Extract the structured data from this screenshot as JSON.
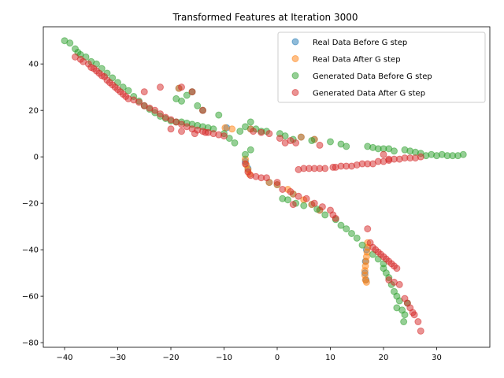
{
  "chart_data": {
    "type": "scatter",
    "title": "Transformed Features at Iteration 3000",
    "xlabel": "",
    "ylabel": "",
    "xlim": [
      -44,
      40
    ],
    "ylim": [
      -82,
      56
    ],
    "xticks": [
      -40,
      -30,
      -20,
      -10,
      0,
      10,
      20,
      30
    ],
    "yticks": [
      -80,
      -60,
      -40,
      -20,
      0,
      20,
      40
    ],
    "grid": false,
    "legend_position": "top-right",
    "series": [
      {
        "name": "Real Data Before G step",
        "color": "#1f77b4",
        "points": [
          [
            -18.5,
            29.5
          ],
          [
            -9.5,
            12.5
          ],
          [
            -5.0,
            12.0
          ],
          [
            4.5,
            8.5
          ],
          [
            7.0,
            7.5
          ],
          [
            -6.0,
            -2.0
          ],
          [
            -5.5,
            -5.0
          ],
          [
            -1.5,
            -11.0
          ],
          [
            0.0,
            -12.0
          ],
          [
            3.0,
            -16.0
          ],
          [
            6.5,
            -20.5
          ],
          [
            8.0,
            -23.0
          ],
          [
            16.8,
            -40.0
          ],
          [
            16.6,
            -45.0
          ],
          [
            16.5,
            -50.0
          ],
          [
            16.7,
            -53.0
          ]
        ]
      },
      {
        "name": "Real Data After G step",
        "color": "#ff7f0e",
        "points": [
          [
            -18.5,
            29.5
          ],
          [
            -9.8,
            12.5
          ],
          [
            -8.5,
            12.0
          ],
          [
            -5.0,
            12.0
          ],
          [
            4.5,
            8.5
          ],
          [
            7.0,
            7.5
          ],
          [
            -6.0,
            -1.0
          ],
          [
            -5.8,
            -3.5
          ],
          [
            -5.5,
            -5.5
          ],
          [
            -5.2,
            -7.5
          ],
          [
            -1.5,
            -11.0
          ],
          [
            0.0,
            -12.0
          ],
          [
            2.0,
            -14.0
          ],
          [
            3.0,
            -16.0
          ],
          [
            5.0,
            -18.5
          ],
          [
            6.5,
            -20.5
          ],
          [
            8.0,
            -23.0
          ],
          [
            17.0,
            -37.0
          ],
          [
            17.0,
            -39.0
          ],
          [
            16.9,
            -41.0
          ],
          [
            16.8,
            -43.0
          ],
          [
            16.7,
            -45.0
          ],
          [
            16.6,
            -47.0
          ],
          [
            16.5,
            -49.0
          ],
          [
            16.5,
            -51.0
          ],
          [
            16.6,
            -53.0
          ],
          [
            16.8,
            -54.0
          ]
        ]
      },
      {
        "name": "Generated Data Before G step",
        "color": "#2ca02c",
        "points": [
          [
            -40.0,
            50.0
          ],
          [
            -39.0,
            49.0
          ],
          [
            -38.0,
            46.5
          ],
          [
            -37.5,
            45.0
          ],
          [
            -37.0,
            44.0
          ],
          [
            -36.0,
            43.0
          ],
          [
            -35.0,
            41.0
          ],
          [
            -34.0,
            40.0
          ],
          [
            -33.0,
            38.0
          ],
          [
            -32.0,
            36.0
          ],
          [
            -31.0,
            34.0
          ],
          [
            -30.0,
            32.0
          ],
          [
            -29.0,
            30.0
          ],
          [
            -28.0,
            28.5
          ],
          [
            -27.0,
            26.0
          ],
          [
            -26.0,
            24.0
          ],
          [
            -25.0,
            22.0
          ],
          [
            -24.0,
            20.5
          ],
          [
            -23.0,
            19.0
          ],
          [
            -22.0,
            17.5
          ],
          [
            -21.0,
            16.5
          ],
          [
            -20.0,
            15.5
          ],
          [
            -19.0,
            15.0
          ],
          [
            -18.0,
            15.0
          ],
          [
            -17.0,
            14.5
          ],
          [
            -16.0,
            14.0
          ],
          [
            -15.0,
            13.5
          ],
          [
            -14.0,
            13.0
          ],
          [
            -13.0,
            12.5
          ],
          [
            -12.0,
            12.0
          ],
          [
            -19.0,
            25.0
          ],
          [
            -18.0,
            24.0
          ],
          [
            -17.0,
            26.5
          ],
          [
            -16.0,
            28.0
          ],
          [
            -15.0,
            22.0
          ],
          [
            -14.0,
            20.0
          ],
          [
            -11.0,
            18.0
          ],
          [
            -10.0,
            10.0
          ],
          [
            -9.0,
            8.0
          ],
          [
            -8.0,
            6.0
          ],
          [
            -7.0,
            11.0
          ],
          [
            -6.0,
            13.0
          ],
          [
            -5.0,
            15.0
          ],
          [
            -4.0,
            12.0
          ],
          [
            -3.0,
            11.0
          ],
          [
            -2.0,
            11.0
          ],
          [
            -5.0,
            3.0
          ],
          [
            -6.0,
            1.0
          ],
          [
            0.5,
            10.0
          ],
          [
            1.5,
            9.0
          ],
          [
            3.0,
            7.5
          ],
          [
            6.5,
            7.0
          ],
          [
            10.0,
            6.5
          ],
          [
            12.0,
            5.5
          ],
          [
            13.0,
            4.5
          ],
          [
            17.0,
            4.5
          ],
          [
            18.0,
            4.0
          ],
          [
            19.0,
            3.5
          ],
          [
            20.0,
            3.5
          ],
          [
            21.0,
            3.5
          ],
          [
            22.0,
            2.5
          ],
          [
            24.0,
            3.0
          ],
          [
            25.0,
            2.5
          ],
          [
            26.0,
            2.0
          ],
          [
            27.0,
            1.5
          ],
          [
            28.0,
            0.5
          ],
          [
            29.0,
            1.0
          ],
          [
            30.0,
            0.5
          ],
          [
            31.0,
            1.0
          ],
          [
            32.0,
            0.5
          ],
          [
            33.0,
            0.5
          ],
          [
            34.0,
            0.5
          ],
          [
            35.0,
            1.0
          ],
          [
            1.0,
            -18.0
          ],
          [
            2.0,
            -18.5
          ],
          [
            3.5,
            -20.0
          ],
          [
            5.0,
            -21.0
          ],
          [
            7.5,
            -22.5
          ],
          [
            9.0,
            -25.0
          ],
          [
            11.0,
            -27.0
          ],
          [
            12.0,
            -29.5
          ],
          [
            13.0,
            -31.0
          ],
          [
            14.0,
            -33.0
          ],
          [
            15.0,
            -35.0
          ],
          [
            16.0,
            -38.0
          ],
          [
            18.0,
            -42.0
          ],
          [
            19.0,
            -44.0
          ],
          [
            20.0,
            -46.0
          ],
          [
            20.0,
            -48.0
          ],
          [
            20.5,
            -50.0
          ],
          [
            21.0,
            -52.0
          ],
          [
            21.5,
            -55.0
          ],
          [
            22.0,
            -58.0
          ],
          [
            22.5,
            -60.0
          ],
          [
            23.0,
            -62.0
          ],
          [
            23.5,
            -66.0
          ],
          [
            24.0,
            -68.0
          ],
          [
            23.8,
            -71.0
          ],
          [
            22.5,
            -65.0
          ],
          [
            24.5,
            -63.0
          ]
        ]
      },
      {
        "name": "Generated Data After G step",
        "color": "#d62728",
        "points": [
          [
            -38.0,
            43.0
          ],
          [
            -37.0,
            42.0
          ],
          [
            -36.5,
            41.0
          ],
          [
            -35.5,
            40.0
          ],
          [
            -35.0,
            38.5
          ],
          [
            -34.5,
            38.0
          ],
          [
            -34.0,
            37.0
          ],
          [
            -33.5,
            36.0
          ],
          [
            -33.0,
            35.0
          ],
          [
            -32.5,
            34.5
          ],
          [
            -32.0,
            33.0
          ],
          [
            -31.5,
            32.0
          ],
          [
            -31.0,
            31.0
          ],
          [
            -30.5,
            30.0
          ],
          [
            -30.0,
            29.0
          ],
          [
            -29.5,
            28.0
          ],
          [
            -29.0,
            27.0
          ],
          [
            -28.5,
            26.0
          ],
          [
            -28.0,
            25.0
          ],
          [
            -27.0,
            24.5
          ],
          [
            -26.0,
            23.5
          ],
          [
            -25.0,
            28.0
          ],
          [
            -25.0,
            22.0
          ],
          [
            -24.0,
            21.0
          ],
          [
            -23.0,
            20.0
          ],
          [
            -22.0,
            18.5
          ],
          [
            -21.0,
            17.0
          ],
          [
            -20.0,
            16.0
          ],
          [
            -19.0,
            15.0
          ],
          [
            -18.0,
            14.0
          ],
          [
            -17.0,
            13.0
          ],
          [
            -16.0,
            12.0
          ],
          [
            -15.0,
            11.5
          ],
          [
            -14.0,
            11.0
          ],
          [
            -13.0,
            10.5
          ],
          [
            -12.0,
            10.0
          ],
          [
            -11.0,
            9.5
          ],
          [
            -10.0,
            9.0
          ],
          [
            -22.0,
            30.0
          ],
          [
            -18.0,
            30.0
          ],
          [
            -16.0,
            28.0
          ],
          [
            -14.0,
            20.0
          ],
          [
            -20.0,
            12.0
          ],
          [
            -18.0,
            11.0
          ],
          [
            -15.5,
            10.0
          ],
          [
            -13.5,
            10.5
          ],
          [
            -6.0,
            -3.0
          ],
          [
            -5.5,
            -6.5
          ],
          [
            -5.0,
            -8.0
          ],
          [
            -4.0,
            -8.5
          ],
          [
            -3.0,
            -9.0
          ],
          [
            -2.0,
            -9.0
          ],
          [
            -4.5,
            11.0
          ],
          [
            -3.0,
            10.5
          ],
          [
            -1.5,
            10.0
          ],
          [
            0.5,
            8.0
          ],
          [
            1.5,
            6.0
          ],
          [
            2.5,
            7.0
          ],
          [
            3.5,
            6.0
          ],
          [
            4.0,
            -5.5
          ],
          [
            5.0,
            -5.0
          ],
          [
            6.0,
            -5.0
          ],
          [
            7.0,
            -5.0
          ],
          [
            8.0,
            -5.0
          ],
          [
            9.0,
            -5.0
          ],
          [
            10.5,
            -4.5
          ],
          [
            11.0,
            -4.5
          ],
          [
            12.0,
            -4.0
          ],
          [
            13.0,
            -4.0
          ],
          [
            14.0,
            -4.0
          ],
          [
            15.0,
            -3.5
          ],
          [
            16.0,
            -3.0
          ],
          [
            17.0,
            -3.0
          ],
          [
            18.0,
            -3.0
          ],
          [
            19.0,
            -2.0
          ],
          [
            20.0,
            -2.0
          ],
          [
            21.0,
            -1.5
          ],
          [
            22.0,
            -1.0
          ],
          [
            23.0,
            -1.0
          ],
          [
            24.0,
            -0.5
          ],
          [
            25.0,
            -0.5
          ],
          [
            26.0,
            -0.5
          ],
          [
            27.0,
            0.0
          ],
          [
            8.0,
            5.0
          ],
          [
            20.0,
            1.0
          ],
          [
            21.0,
            -1.0
          ],
          [
            0.0,
            -11.0
          ],
          [
            1.0,
            -14.0
          ],
          [
            2.5,
            -15.0
          ],
          [
            4.0,
            -17.0
          ],
          [
            5.5,
            -18.0
          ],
          [
            7.0,
            -20.0
          ],
          [
            8.5,
            -21.5
          ],
          [
            10.0,
            -23.0
          ],
          [
            10.5,
            -25.0
          ],
          [
            11.0,
            -26.5
          ],
          [
            3.0,
            -20.5
          ],
          [
            17.0,
            -31.0
          ],
          [
            17.5,
            -37.0
          ],
          [
            18.0,
            -39.0
          ],
          [
            18.5,
            -40.0
          ],
          [
            19.0,
            -41.0
          ],
          [
            19.5,
            -42.0
          ],
          [
            20.0,
            -43.0
          ],
          [
            20.5,
            -44.0
          ],
          [
            21.0,
            -45.0
          ],
          [
            21.5,
            -46.0
          ],
          [
            22.0,
            -47.0
          ],
          [
            22.5,
            -48.0
          ],
          [
            21.0,
            -53.0
          ],
          [
            22.0,
            -54.0
          ],
          [
            23.0,
            -55.0
          ],
          [
            24.0,
            -61.0
          ],
          [
            24.5,
            -63.0
          ],
          [
            25.0,
            -65.0
          ],
          [
            25.5,
            -67.0
          ],
          [
            25.8,
            -68.0
          ],
          [
            26.5,
            -71.0
          ],
          [
            27.0,
            -75.0
          ]
        ]
      }
    ]
  }
}
